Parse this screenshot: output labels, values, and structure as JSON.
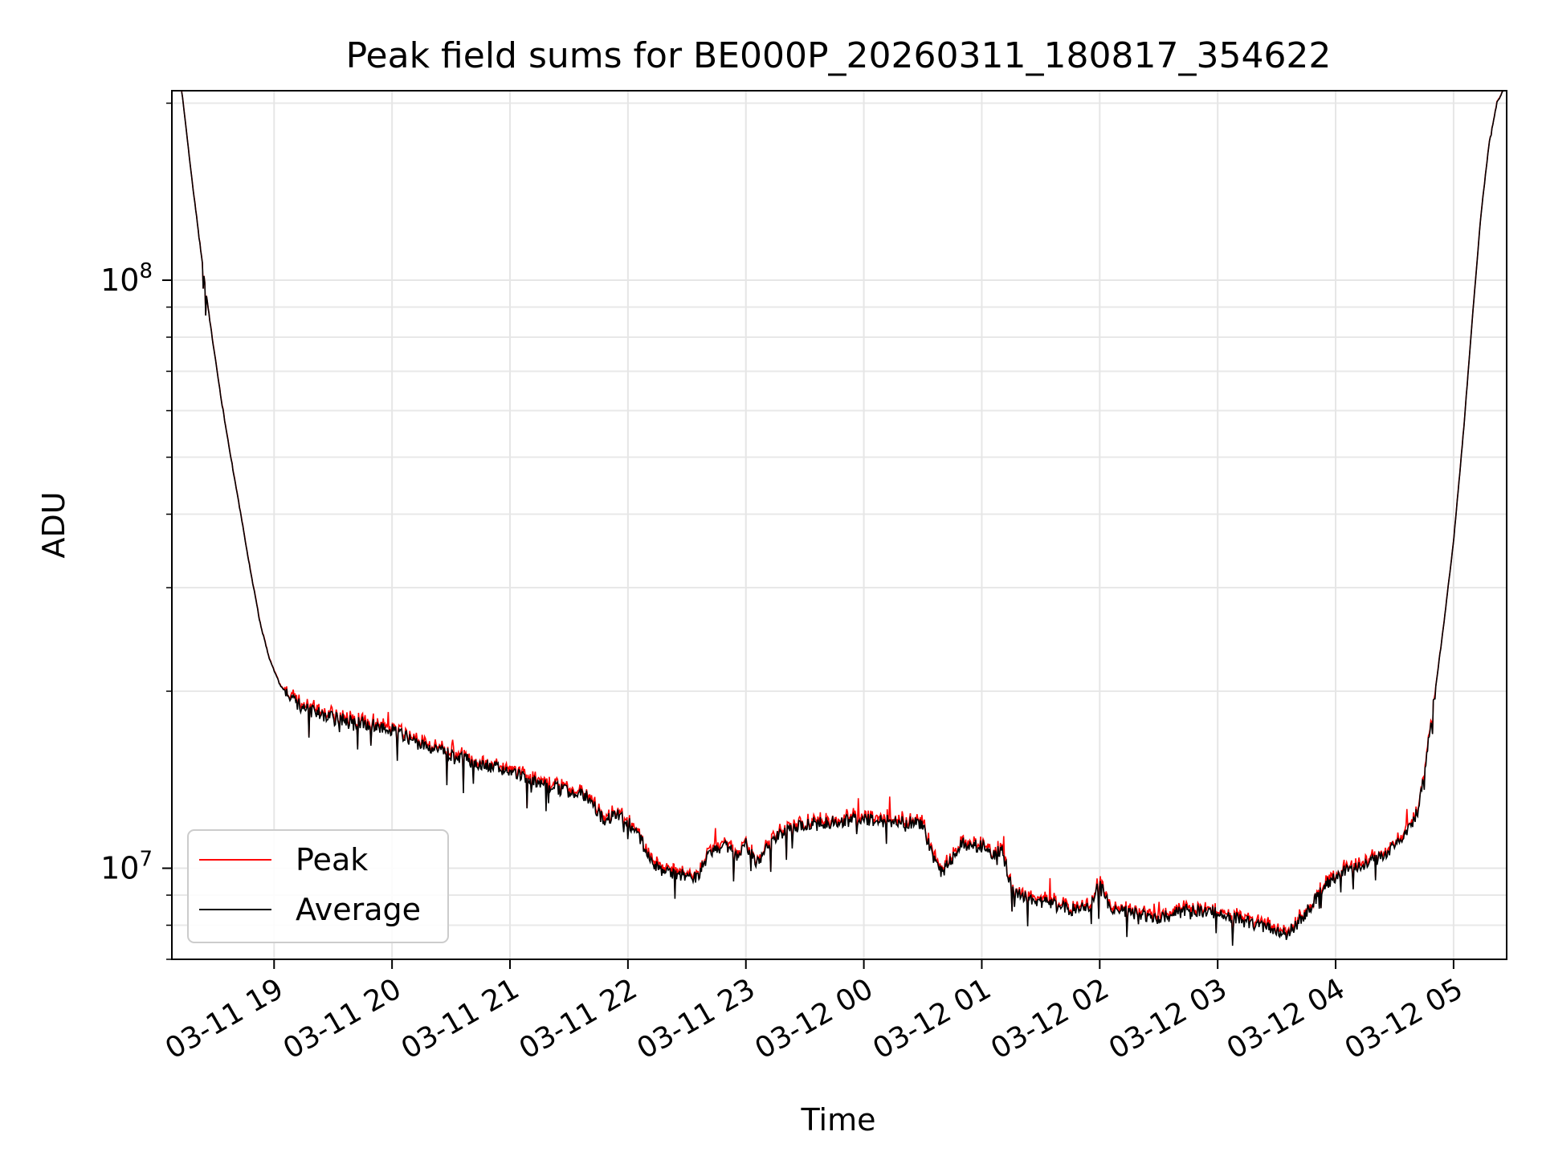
{
  "chart_data": {
    "type": "line",
    "title": "Peak field sums for BE000P_20260311_180817_354622",
    "xlabel": "Time",
    "ylabel": "ADU",
    "yscale": "log",
    "xlim": [
      "2026-03-11 18:08",
      "2026-03-12 05:27"
    ],
    "ylim": [
      7000000,
      210000000
    ],
    "grid": true,
    "legend": "lower-left",
    "x_ticks": [
      {
        "t": "2026-03-11 19:00",
        "label": "03-11 19"
      },
      {
        "t": "2026-03-11 20:00",
        "label": "03-11 20"
      },
      {
        "t": "2026-03-11 21:00",
        "label": "03-11 21"
      },
      {
        "t": "2026-03-11 22:00",
        "label": "03-11 22"
      },
      {
        "t": "2026-03-11 23:00",
        "label": "03-11 23"
      },
      {
        "t": "2026-03-12 00:00",
        "label": "03-12 00"
      },
      {
        "t": "2026-03-12 01:00",
        "label": "03-12 01"
      },
      {
        "t": "2026-03-12 02:00",
        "label": "03-12 02"
      },
      {
        "t": "2026-03-12 03:00",
        "label": "03-12 03"
      },
      {
        "t": "2026-03-12 04:00",
        "label": "03-12 04"
      },
      {
        "t": "2026-03-12 05:00",
        "label": "03-12 05"
      }
    ],
    "y_ticks": [
      {
        "value": 10000000,
        "base": "10",
        "exp": "7"
      },
      {
        "value": 100000000,
        "base": "10",
        "exp": "8"
      }
    ],
    "series": [
      {
        "name": "Peak",
        "color": "#ff0000"
      },
      {
        "name": "Average",
        "color": "#000000"
      }
    ],
    "points": [
      [
        "2026-03-11 18:13",
        210000000
      ],
      [
        "2026-03-11 18:18",
        150000000
      ],
      [
        "2026-03-11 18:23",
        110000000
      ],
      [
        "2026-03-11 18:28",
        82000000
      ],
      [
        "2026-03-11 18:33",
        63000000
      ],
      [
        "2026-03-11 18:38",
        50000000
      ],
      [
        "2026-03-11 18:43",
        40000000
      ],
      [
        "2026-03-11 18:48",
        32000000
      ],
      [
        "2026-03-11 18:53",
        26000000
      ],
      [
        "2026-03-11 18:58",
        22500000
      ],
      [
        "2026-03-11 19:03",
        20500000
      ],
      [
        "2026-03-11 19:08",
        19500000
      ],
      [
        "2026-03-11 19:15",
        18700000
      ],
      [
        "2026-03-11 19:30",
        18000000
      ],
      [
        "2026-03-11 19:45",
        17700000
      ],
      [
        "2026-03-11 20:00",
        17200000
      ],
      [
        "2026-03-11 20:15",
        16200000
      ],
      [
        "2026-03-11 20:30",
        15600000
      ],
      [
        "2026-03-11 20:45",
        15000000
      ],
      [
        "2026-03-11 21:00",
        14600000
      ],
      [
        "2026-03-11 21:15",
        14000000
      ],
      [
        "2026-03-11 21:30",
        13500000
      ],
      [
        "2026-03-11 21:40",
        13200000
      ],
      [
        "2026-03-11 21:48",
        12000000
      ],
      [
        "2026-03-11 21:55",
        12400000
      ],
      [
        "2026-03-11 22:05",
        11500000
      ],
      [
        "2026-03-11 22:12",
        10200000
      ],
      [
        "2026-03-11 22:20",
        9800000
      ],
      [
        "2026-03-11 22:30",
        9700000
      ],
      [
        "2026-03-11 22:35",
        9600000
      ],
      [
        "2026-03-11 22:42",
        10700000
      ],
      [
        "2026-03-11 22:50",
        10900000
      ],
      [
        "2026-03-11 22:55",
        10500000
      ],
      [
        "2026-03-11 23:00",
        11000000
      ],
      [
        "2026-03-11 23:05",
        10200000
      ],
      [
        "2026-03-11 23:10",
        10700000
      ],
      [
        "2026-03-11 23:18",
        11500000
      ],
      [
        "2026-03-11 23:30",
        11900000
      ],
      [
        "2026-03-11 23:45",
        12000000
      ],
      [
        "2026-03-12 00:00",
        12100000
      ],
      [
        "2026-03-12 00:15",
        12000000
      ],
      [
        "2026-03-12 00:25",
        11950000
      ],
      [
        "2026-03-12 00:30",
        11800000
      ],
      [
        "2026-03-12 00:35",
        10500000
      ],
      [
        "2026-03-12 00:40",
        9800000
      ],
      [
        "2026-03-12 00:45",
        10400000
      ],
      [
        "2026-03-12 00:50",
        11000000
      ],
      [
        "2026-03-12 01:00",
        10900000
      ],
      [
        "2026-03-12 01:05",
        10500000
      ],
      [
        "2026-03-12 01:10",
        10800000
      ],
      [
        "2026-03-12 01:15",
        9300000
      ],
      [
        "2026-03-12 01:25",
        8800000
      ],
      [
        "2026-03-12 01:35",
        8700000
      ],
      [
        "2026-03-12 01:45",
        8500000
      ],
      [
        "2026-03-12 01:55",
        8600000
      ],
      [
        "2026-03-12 02:00",
        9400000
      ],
      [
        "2026-03-12 02:05",
        8600000
      ],
      [
        "2026-03-12 02:15",
        8400000
      ],
      [
        "2026-03-12 02:30",
        8200000
      ],
      [
        "2026-03-12 02:45",
        8500000
      ],
      [
        "2026-03-12 03:00",
        8400000
      ],
      [
        "2026-03-12 03:15",
        8100000
      ],
      [
        "2026-03-12 03:25",
        7900000
      ],
      [
        "2026-03-12 03:35",
        7700000
      ],
      [
        "2026-03-12 03:45",
        8400000
      ],
      [
        "2026-03-12 03:55",
        9400000
      ],
      [
        "2026-03-12 04:05",
        9900000
      ],
      [
        "2026-03-12 04:15",
        10200000
      ],
      [
        "2026-03-12 04:25",
        10500000
      ],
      [
        "2026-03-12 04:35",
        11400000
      ],
      [
        "2026-03-12 04:42",
        12500000
      ],
      [
        "2026-03-12 04:48",
        17000000
      ],
      [
        "2026-03-12 04:55",
        26000000
      ],
      [
        "2026-03-12 05:00",
        36000000
      ],
      [
        "2026-03-12 05:05",
        55000000
      ],
      [
        "2026-03-12 05:10",
        90000000
      ],
      [
        "2026-03-12 05:14",
        130000000
      ],
      [
        "2026-03-12 05:18",
        170000000
      ],
      [
        "2026-03-12 05:22",
        200000000
      ],
      [
        "2026-03-12 05:25",
        210000000
      ]
    ]
  }
}
